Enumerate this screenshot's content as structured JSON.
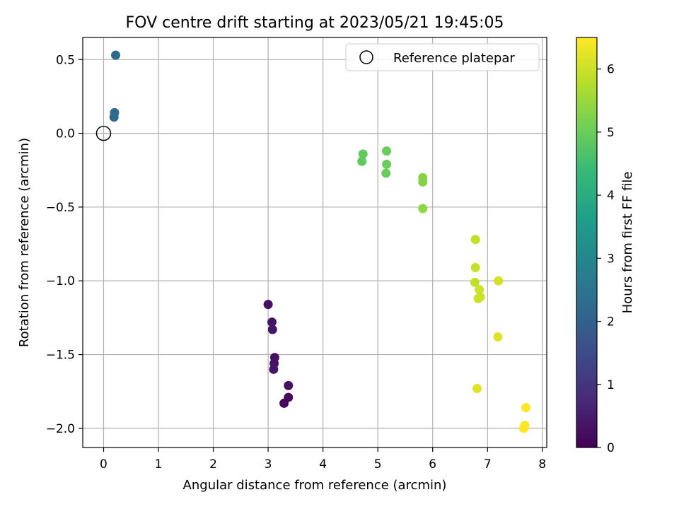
{
  "chart_data": {
    "type": "scatter",
    "title": "FOV centre drift starting at 2023/05/21 19:45:05",
    "xlabel": "Angular distance from reference (arcmin)",
    "ylabel": "Rotation from reference (arcmin)",
    "xlim": [
      -0.38,
      8.08
    ],
    "ylim": [
      -2.13,
      0.65
    ],
    "x_ticks": [
      0,
      1,
      2,
      3,
      4,
      5,
      6,
      7,
      8
    ],
    "x_tick_labels": [
      "0",
      "1",
      "2",
      "3",
      "4",
      "5",
      "6",
      "7",
      "8"
    ],
    "y_ticks": [
      0.5,
      0.0,
      -0.5,
      -1.0,
      -1.5,
      -2.0
    ],
    "y_tick_labels": [
      "0.5",
      "0.0",
      "−0.5",
      "−1.0",
      "−1.5",
      "−2.0"
    ],
    "grid": true,
    "legend": {
      "placement": "top-right",
      "entries": [
        "Reference platepar"
      ]
    },
    "reference_point": {
      "x": 0.0,
      "y": 0.0
    },
    "colorbar": {
      "label": "Hours from first FF file",
      "range": [
        0,
        6.5
      ],
      "ticks": [
        0,
        1,
        2,
        3,
        4,
        5,
        6
      ],
      "tick_labels": [
        "0",
        "1",
        "2",
        "3",
        "4",
        "5",
        "6"
      ],
      "colormap": "viridis"
    },
    "points": [
      {
        "x": 3.0,
        "y": -1.16,
        "c": 0.3
      },
      {
        "x": 3.07,
        "y": -1.28,
        "c": 0.35
      },
      {
        "x": 3.08,
        "y": -1.33,
        "c": 0.4
      },
      {
        "x": 3.12,
        "y": -1.52,
        "c": 0.3
      },
      {
        "x": 3.11,
        "y": -1.56,
        "c": 0.35
      },
      {
        "x": 3.1,
        "y": -1.6,
        "c": 0.4
      },
      {
        "x": 3.37,
        "y": -1.71,
        "c": 0.3
      },
      {
        "x": 3.37,
        "y": -1.79,
        "c": 0.2
      },
      {
        "x": 3.29,
        "y": -1.83,
        "c": 0.1
      },
      {
        "x": 0.22,
        "y": 0.53,
        "c": 2.2
      },
      {
        "x": 0.2,
        "y": 0.14,
        "c": 2.2
      },
      {
        "x": 0.19,
        "y": 0.11,
        "c": 2.2
      },
      {
        "x": 4.73,
        "y": -0.14,
        "c": 4.9
      },
      {
        "x": 4.71,
        "y": -0.19,
        "c": 4.9
      },
      {
        "x": 5.16,
        "y": -0.12,
        "c": 5.0
      },
      {
        "x": 5.16,
        "y": -0.21,
        "c": 5.0
      },
      {
        "x": 5.15,
        "y": -0.27,
        "c": 5.0
      },
      {
        "x": 5.82,
        "y": -0.3,
        "c": 5.3
      },
      {
        "x": 5.82,
        "y": -0.33,
        "c": 5.3
      },
      {
        "x": 5.82,
        "y": -0.51,
        "c": 5.4
      },
      {
        "x": 6.78,
        "y": -0.72,
        "c": 5.9
      },
      {
        "x": 6.78,
        "y": -0.91,
        "c": 5.9
      },
      {
        "x": 6.77,
        "y": -1.01,
        "c": 5.9
      },
      {
        "x": 6.85,
        "y": -1.06,
        "c": 6.0
      },
      {
        "x": 6.83,
        "y": -1.12,
        "c": 6.0
      },
      {
        "x": 6.87,
        "y": -1.11,
        "c": 6.0
      },
      {
        "x": 7.2,
        "y": -1.0,
        "c": 6.1
      },
      {
        "x": 7.19,
        "y": -1.38,
        "c": 6.2
      },
      {
        "x": 6.81,
        "y": -1.73,
        "c": 6.2
      },
      {
        "x": 7.7,
        "y": -1.86,
        "c": 6.5
      },
      {
        "x": 7.68,
        "y": -1.98,
        "c": 6.5
      },
      {
        "x": 7.66,
        "y": -2.0,
        "c": 6.5
      }
    ]
  }
}
